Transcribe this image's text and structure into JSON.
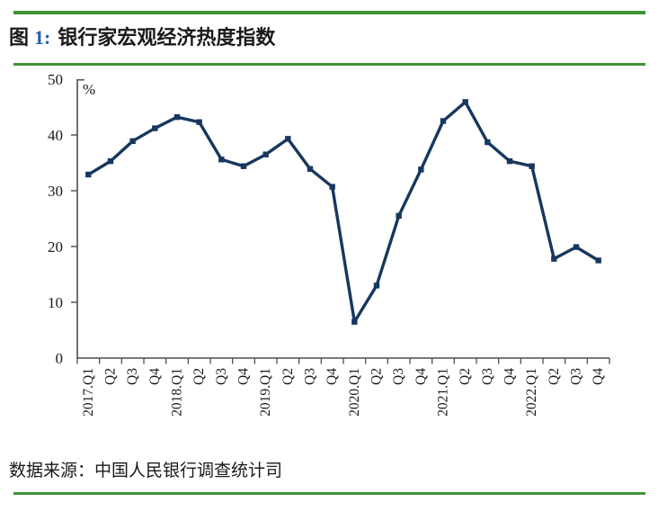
{
  "page": {
    "figure_label": "图",
    "figure_number": "1:",
    "title": "银行家宏观经济热度指数",
    "source": "数据来源：中国人民银行调查统计司"
  },
  "colors": {
    "rule_green": "#419237",
    "line_navy": "#17375E",
    "figure_number_blue": "#2060B0",
    "axis_gray": "#4d4d4d",
    "text_black": "#1a1a1a"
  },
  "chart_data": {
    "type": "line",
    "title": "银行家宏观经济热度指数",
    "unit_label": "%",
    "categories": [
      "2017.Q1",
      "Q2",
      "Q3",
      "Q4",
      "2018.Q1",
      "Q2",
      "Q3",
      "Q4",
      "2019.Q1",
      "Q2",
      "Q3",
      "Q4",
      "2020.Q1",
      "Q2",
      "Q3",
      "Q4",
      "2021.Q1",
      "Q2",
      "Q3",
      "Q4",
      "2022.Q1",
      "Q2",
      "Q3",
      "Q4"
    ],
    "values": [
      32.9,
      35.3,
      38.9,
      41.2,
      43.2,
      42.3,
      35.6,
      34.4,
      36.5,
      39.3,
      33.9,
      30.7,
      6.5,
      13.0,
      25.5,
      33.8,
      42.5,
      45.9,
      38.7,
      35.3,
      34.4,
      17.8,
      19.9,
      17.5
    ],
    "ylim": [
      0,
      50
    ],
    "yticks": [
      0,
      10,
      20,
      30,
      40,
      50
    ],
    "xlabel": "",
    "ylabel": "%",
    "grid": false,
    "legend": null,
    "marker": "square",
    "x_label_rotation": -90
  }
}
